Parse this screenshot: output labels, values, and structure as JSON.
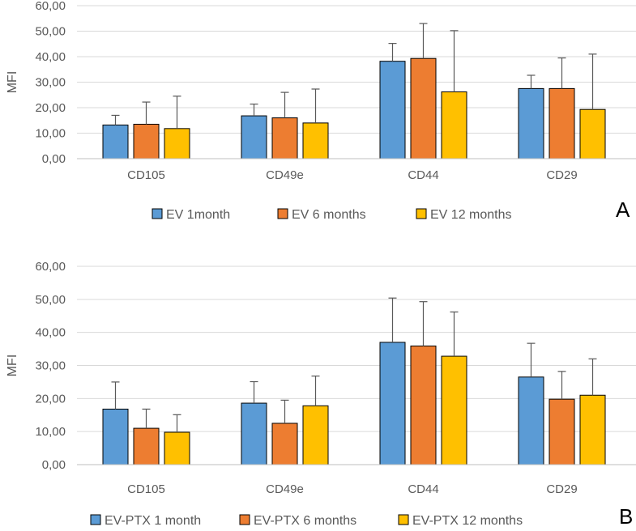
{
  "chart_data": [
    {
      "type": "bar",
      "panel": "A",
      "ylabel": "MFI",
      "xlabel": "",
      "ylim": [
        0,
        60
      ],
      "ytick_step": 10,
      "ytick_labels": [
        "0,00",
        "10,00",
        "20,00",
        "30,00",
        "40,00",
        "50,00",
        "60,00"
      ],
      "categories": [
        "CD105",
        "CD49e",
        "CD44",
        "CD29"
      ],
      "legend_position": "bottom",
      "grid": true,
      "series": [
        {
          "name": "EV 1month",
          "color": "#5b9bd5",
          "values": [
            13.2,
            16.8,
            38.2,
            27.5
          ],
          "errors": [
            3.8,
            4.6,
            7.0,
            5.2
          ]
        },
        {
          "name": "EV 6 months",
          "color": "#ed7d31",
          "values": [
            13.5,
            16.0,
            39.3,
            27.5
          ],
          "errors": [
            8.7,
            10.0,
            13.7,
            12.0
          ]
        },
        {
          "name": "EV 12 months",
          "color": "#ffc000",
          "values": [
            11.8,
            14.0,
            26.2,
            19.3
          ],
          "errors": [
            12.7,
            13.3,
            24.0,
            21.7
          ]
        }
      ]
    },
    {
      "type": "bar",
      "panel": "B",
      "ylabel": "MFI",
      "xlabel": "",
      "ylim": [
        0,
        60
      ],
      "ytick_step": 10,
      "ytick_labels": [
        "0,00",
        "10,00",
        "20,00",
        "30,00",
        "40,00",
        "50,00",
        "60,00"
      ],
      "categories": [
        "CD105",
        "CD49e",
        "CD44",
        "CD29"
      ],
      "legend_position": "bottom",
      "grid": true,
      "series": [
        {
          "name": "EV-PTX 1 month",
          "color": "#5b9bd5",
          "values": [
            16.8,
            18.6,
            37.0,
            26.5
          ],
          "errors": [
            8.2,
            6.5,
            13.4,
            10.2
          ]
        },
        {
          "name": "EV-PTX 6 months",
          "color": "#ed7d31",
          "values": [
            11.0,
            12.5,
            35.9,
            19.8
          ],
          "errors": [
            5.8,
            7.0,
            13.4,
            8.4
          ]
        },
        {
          "name": "EV-PTX 12 months",
          "color": "#ffc000",
          "values": [
            9.8,
            17.8,
            32.8,
            21.0
          ],
          "errors": [
            5.3,
            9.0,
            13.4,
            11.0
          ]
        }
      ]
    }
  ]
}
